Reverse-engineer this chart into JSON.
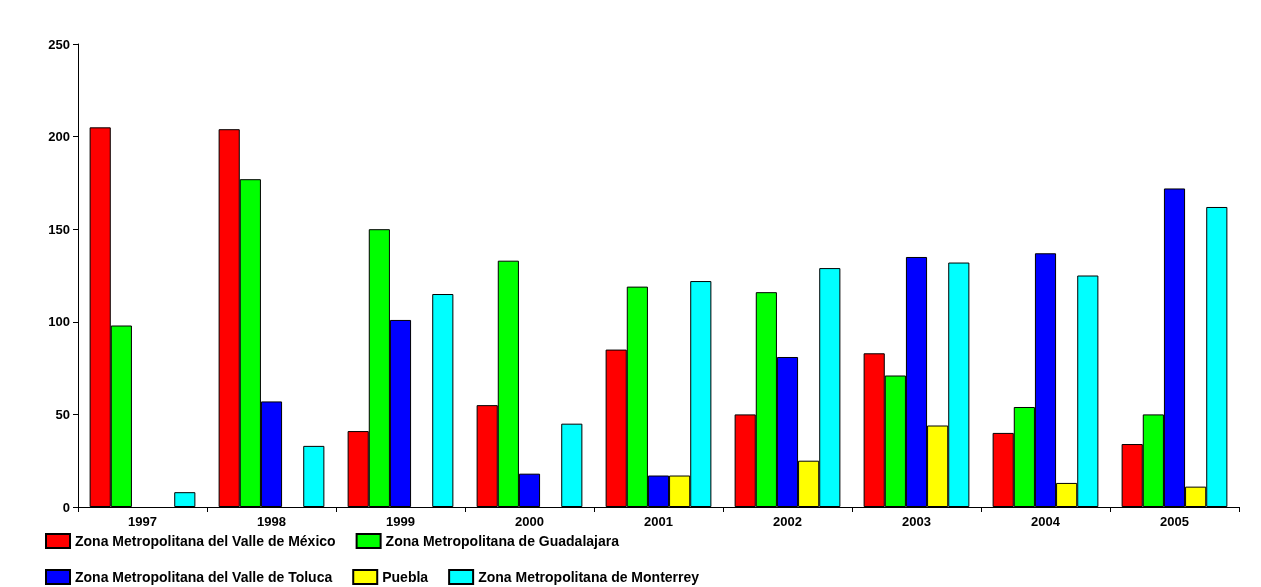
{
  "chart_data": {
    "type": "bar",
    "categories": [
      "1997",
      "1998",
      "1999",
      "2000",
      "2001",
      "2002",
      "2003",
      "2004",
      "2005"
    ],
    "series": [
      {
        "name": "Zona Metropolitana del Valle de México",
        "color": "#ff0000",
        "values": [
          205,
          204,
          41,
          55,
          85,
          50,
          83,
          40,
          34
        ]
      },
      {
        "name": "Zona Metropolitana de Guadalajara",
        "color": "#00ff00",
        "values": [
          98,
          177,
          150,
          133,
          119,
          116,
          71,
          54,
          50
        ]
      },
      {
        "name": "Zona Metropolitana del Valle de Toluca",
        "color": "#0000ff",
        "values": [
          null,
          57,
          101,
          18,
          17,
          81,
          135,
          137,
          172
        ]
      },
      {
        "name": "Puebla",
        "color": "#ffff00",
        "values": [
          null,
          null,
          null,
          null,
          17,
          25,
          44,
          13,
          11
        ]
      },
      {
        "name": "Zona Metropolitana de Monterrey",
        "color": "#00ffff",
        "values": [
          8,
          33,
          115,
          45,
          122,
          129,
          132,
          125,
          162
        ]
      }
    ],
    "ylim": [
      0,
      250
    ],
    "yticks": [
      0,
      50,
      100,
      150,
      200,
      250
    ],
    "grid": false,
    "legend": "bottom"
  }
}
